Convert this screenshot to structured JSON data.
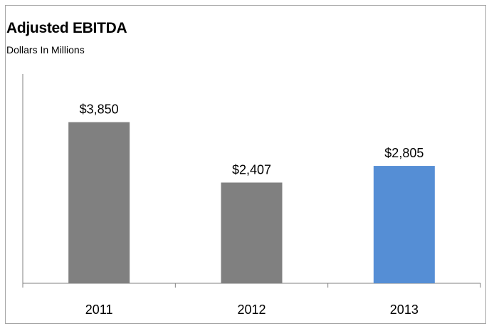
{
  "chart_data": {
    "type": "bar",
    "title": "Adjusted EBITDA",
    "subtitle": "Dollars In Millions",
    "categories": [
      "2011",
      "2012",
      "2013"
    ],
    "values": [
      3850,
      2407,
      2805
    ],
    "data_labels": [
      "$3,850",
      "$2,407",
      "$2,805"
    ],
    "bar_colors": [
      "#808080",
      "#808080",
      "#558ED5"
    ],
    "ylim": [
      0,
      5000
    ],
    "grid": false,
    "legend": "none",
    "xlabel": "",
    "ylabel": ""
  }
}
